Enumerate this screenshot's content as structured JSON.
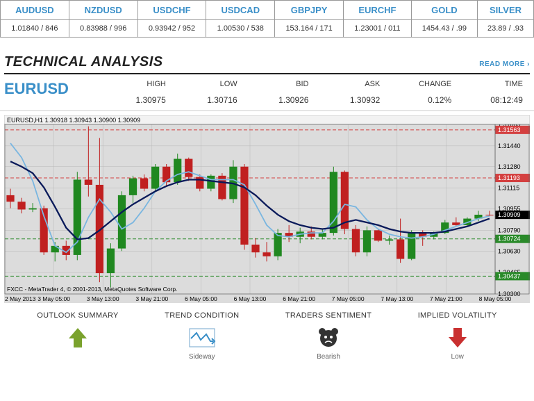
{
  "ticker": {
    "pairs": [
      {
        "label": "AUDUSD",
        "value": "1.01840 / 846"
      },
      {
        "label": "NZDUSD",
        "value": "0.83988 / 996"
      },
      {
        "label": "USDCHF",
        "value": "0.93942 / 952"
      },
      {
        "label": "USDCAD",
        "value": "1.00530 / 538"
      },
      {
        "label": "GBPJPY",
        "value": "153.164 / 171"
      },
      {
        "label": "EURCHF",
        "value": "1.23001 / 011"
      },
      {
        "label": "GOLD",
        "value": "1454.43 / .99"
      },
      {
        "label": "SILVER",
        "value": "23.89 / .93"
      }
    ]
  },
  "section": {
    "title": "TECHNICAL ANALYSIS",
    "read_more": "READ MORE  ›"
  },
  "pair": {
    "symbol": "EURUSD",
    "metrics": [
      {
        "label": "HIGH",
        "value": "1.30975"
      },
      {
        "label": "LOW",
        "value": "1.30716"
      },
      {
        "label": "BID",
        "value": "1.30926"
      },
      {
        "label": "ASK",
        "value": "1.30932"
      },
      {
        "label": "CHANGE",
        "value": "0.12%"
      },
      {
        "label": "TIME",
        "value": "08:12:49"
      }
    ]
  },
  "chart": {
    "type": "candlestick",
    "title_strip": "EURUSD,H1 1.30918 1.30943 1.30900 1.30909",
    "footer": "FXCC - MetaTrader 4, © 2001-2013, MetaQuotes Software Corp.",
    "background_color": "#dcdcdc",
    "plot_background": "#dcdcdc",
    "grid_color": "#b8b8b8",
    "text_color": "#000000",
    "title_fontsize": 9,
    "ylim": [
      1.303,
      1.31605
    ],
    "ytick_labels": [
      "1.31605",
      "1.31440",
      "1.31280",
      "1.31115",
      "1.30955",
      "1.30790",
      "1.30630",
      "1.30465",
      "1.30300"
    ],
    "ytick_values": [
      1.31605,
      1.3144,
      1.3128,
      1.31115,
      1.30955,
      1.3079,
      1.3063,
      1.30465,
      1.303
    ],
    "xtick_labels": [
      "2 May 2013",
      "3 May 05:00",
      "3 May 13:00",
      "3 May 21:00",
      "6 May 05:00",
      "6 May 13:00",
      "6 May 21:00",
      "7 May 05:00",
      "7 May 13:00",
      "7 May 21:00",
      "8 May 05:00"
    ],
    "hlines": [
      {
        "value": 1.31563,
        "color": "#d44040",
        "dash": "5,3",
        "label": "1.31563",
        "label_bg": "#d44040"
      },
      {
        "value": 1.31193,
        "color": "#d44040",
        "dash": "5,3",
        "label": "1.31193",
        "label_bg": "#d44040"
      },
      {
        "value": 1.30909,
        "color": "#000000",
        "dash": "none",
        "label": "1.30909",
        "label_bg": "#000000"
      },
      {
        "value": 1.30724,
        "color": "#2a8a2a",
        "dash": "5,3",
        "label": "1.30724",
        "label_bg": "#2a8a2a"
      },
      {
        "value": 1.30437,
        "color": "#2a8a2a",
        "dash": "5,3",
        "label": "1.30437",
        "label_bg": "#2a8a2a"
      }
    ],
    "candles": [
      {
        "o": 1.3106,
        "h": 1.3111,
        "l": 1.3096,
        "c": 1.3101,
        "col": "#c02020"
      },
      {
        "o": 1.3101,
        "h": 1.3104,
        "l": 1.3092,
        "c": 1.3095,
        "col": "#c02020"
      },
      {
        "o": 1.3095,
        "h": 1.31,
        "l": 1.3093,
        "c": 1.3096,
        "col": "#208820"
      },
      {
        "o": 1.3096,
        "h": 1.3098,
        "l": 1.306,
        "c": 1.3062,
        "col": "#c02020"
      },
      {
        "o": 1.3062,
        "h": 1.307,
        "l": 1.3055,
        "c": 1.3067,
        "col": "#208820"
      },
      {
        "o": 1.3067,
        "h": 1.3071,
        "l": 1.3056,
        "c": 1.306,
        "col": "#c02020"
      },
      {
        "o": 1.306,
        "h": 1.3124,
        "l": 1.3056,
        "c": 1.3118,
        "col": "#208820"
      },
      {
        "o": 1.3118,
        "h": 1.3159,
        "l": 1.3105,
        "c": 1.3114,
        "col": "#c02020"
      },
      {
        "o": 1.3114,
        "h": 1.315,
        "l": 1.3039,
        "c": 1.3046,
        "col": "#c02020"
      },
      {
        "o": 1.3046,
        "h": 1.3069,
        "l": 1.3035,
        "c": 1.3065,
        "col": "#208820"
      },
      {
        "o": 1.3065,
        "h": 1.3109,
        "l": 1.3063,
        "c": 1.3106,
        "col": "#208820"
      },
      {
        "o": 1.3106,
        "h": 1.3121,
        "l": 1.31,
        "c": 1.3119,
        "col": "#208820"
      },
      {
        "o": 1.3119,
        "h": 1.3122,
        "l": 1.3109,
        "c": 1.3111,
        "col": "#c02020"
      },
      {
        "o": 1.3111,
        "h": 1.313,
        "l": 1.3109,
        "c": 1.3128,
        "col": "#208820"
      },
      {
        "o": 1.3128,
        "h": 1.313,
        "l": 1.3113,
        "c": 1.3116,
        "col": "#c02020"
      },
      {
        "o": 1.3116,
        "h": 1.3138,
        "l": 1.3114,
        "c": 1.3134,
        "col": "#208820"
      },
      {
        "o": 1.3134,
        "h": 1.3135,
        "l": 1.3117,
        "c": 1.312,
        "col": "#c02020"
      },
      {
        "o": 1.312,
        "h": 1.3122,
        "l": 1.3109,
        "c": 1.3111,
        "col": "#c02020"
      },
      {
        "o": 1.3111,
        "h": 1.3122,
        "l": 1.3109,
        "c": 1.3121,
        "col": "#208820"
      },
      {
        "o": 1.3121,
        "h": 1.3123,
        "l": 1.3102,
        "c": 1.3103,
        "col": "#c02020"
      },
      {
        "o": 1.3103,
        "h": 1.3133,
        "l": 1.31,
        "c": 1.3128,
        "col": "#208820"
      },
      {
        "o": 1.3128,
        "h": 1.313,
        "l": 1.3064,
        "c": 1.3068,
        "col": "#c02020"
      },
      {
        "o": 1.3068,
        "h": 1.3073,
        "l": 1.3058,
        "c": 1.3062,
        "col": "#c02020"
      },
      {
        "o": 1.3062,
        "h": 1.307,
        "l": 1.3055,
        "c": 1.3059,
        "col": "#c02020"
      },
      {
        "o": 1.3059,
        "h": 1.308,
        "l": 1.3056,
        "c": 1.3077,
        "col": "#208820"
      },
      {
        "o": 1.3077,
        "h": 1.3083,
        "l": 1.307,
        "c": 1.3074,
        "col": "#c02020"
      },
      {
        "o": 1.3074,
        "h": 1.3081,
        "l": 1.3069,
        "c": 1.3078,
        "col": "#208820"
      },
      {
        "o": 1.3078,
        "h": 1.3082,
        "l": 1.3072,
        "c": 1.3074,
        "col": "#c02020"
      },
      {
        "o": 1.3074,
        "h": 1.308,
        "l": 1.3072,
        "c": 1.3077,
        "col": "#208820"
      },
      {
        "o": 1.3077,
        "h": 1.3128,
        "l": 1.3075,
        "c": 1.3124,
        "col": "#208820"
      },
      {
        "o": 1.3124,
        "h": 1.3125,
        "l": 1.3076,
        "c": 1.308,
        "col": "#c02020"
      },
      {
        "o": 1.308,
        "h": 1.3083,
        "l": 1.3059,
        "c": 1.3062,
        "col": "#c02020"
      },
      {
        "o": 1.3062,
        "h": 1.3082,
        "l": 1.3059,
        "c": 1.3079,
        "col": "#208820"
      },
      {
        "o": 1.3079,
        "h": 1.308,
        "l": 1.307,
        "c": 1.3071,
        "col": "#c02020"
      },
      {
        "o": 1.3071,
        "h": 1.3075,
        "l": 1.3068,
        "c": 1.3072,
        "col": "#208820"
      },
      {
        "o": 1.3072,
        "h": 1.3088,
        "l": 1.3054,
        "c": 1.3057,
        "col": "#c02020"
      },
      {
        "o": 1.3057,
        "h": 1.3079,
        "l": 1.3056,
        "c": 1.3077,
        "col": "#208820"
      },
      {
        "o": 1.3077,
        "h": 1.3079,
        "l": 1.3067,
        "c": 1.3074,
        "col": "#c02020"
      },
      {
        "o": 1.3074,
        "h": 1.3078,
        "l": 1.3072,
        "c": 1.3077,
        "col": "#208820"
      },
      {
        "o": 1.3077,
        "h": 1.3087,
        "l": 1.3076,
        "c": 1.3085,
        "col": "#208820"
      },
      {
        "o": 1.3085,
        "h": 1.3089,
        "l": 1.3082,
        "c": 1.3083,
        "col": "#c02020"
      },
      {
        "o": 1.3083,
        "h": 1.3089,
        "l": 1.3082,
        "c": 1.3088,
        "col": "#208820"
      },
      {
        "o": 1.3088,
        "h": 1.3094,
        "l": 1.3086,
        "c": 1.3091,
        "col": "#208820"
      },
      {
        "o": 1.3091,
        "h": 1.3094,
        "l": 1.309,
        "c": 1.3091,
        "col": "#c02020"
      }
    ],
    "ma_dark": {
      "color": "#0a1a5a",
      "width": 2.3,
      "points": [
        1.3132,
        1.3128,
        1.3123,
        1.3112,
        1.3097,
        1.3081,
        1.3072,
        1.3073,
        1.3079,
        1.3086,
        1.3093,
        1.3099,
        1.3104,
        1.3109,
        1.3113,
        1.3116,
        1.3118,
        1.3118,
        1.3117,
        1.3116,
        1.3115,
        1.3112,
        1.3106,
        1.3098,
        1.3091,
        1.3086,
        1.3083,
        1.3081,
        1.308,
        1.3081,
        1.3085,
        1.3087,
        1.3085,
        1.3083,
        1.308,
        1.3078,
        1.3077,
        1.3077,
        1.3077,
        1.3078,
        1.308,
        1.3082,
        1.3085,
        1.3088
      ]
    },
    "ma_light": {
      "color": "#7ab6e0",
      "width": 1.8,
      "points": [
        1.3146,
        1.3135,
        1.3117,
        1.309,
        1.3067,
        1.3062,
        1.307,
        1.3089,
        1.3103,
        1.3093,
        1.308,
        1.3085,
        1.3096,
        1.3109,
        1.3117,
        1.3122,
        1.3124,
        1.3121,
        1.3118,
        1.3118,
        1.3118,
        1.3114,
        1.3099,
        1.3083,
        1.3075,
        1.3074,
        1.3076,
        1.3077,
        1.3077,
        1.3086,
        1.3099,
        1.3097,
        1.3087,
        1.308,
        1.3076,
        1.3074,
        1.3073,
        1.3074,
        1.3076,
        1.3079,
        1.3082,
        1.3085,
        1.3088,
        1.309
      ]
    }
  },
  "summary": {
    "items": [
      {
        "label": "OUTLOOK SUMMARY",
        "icon": "arrow-up",
        "icon_color": "#7aa22d",
        "sub": ""
      },
      {
        "label": "TREND CONDITION",
        "icon": "sideway-zigzag",
        "icon_color": "#3a8fc8",
        "sub": "Sideway"
      },
      {
        "label": "TRADERS SENTIMENT",
        "icon": "bear",
        "icon_color": "#333333",
        "sub": "Bearish"
      },
      {
        "label": "IMPLIED VOLATILITY",
        "icon": "arrow-down",
        "icon_color": "#c93030",
        "sub": "Low"
      }
    ]
  }
}
